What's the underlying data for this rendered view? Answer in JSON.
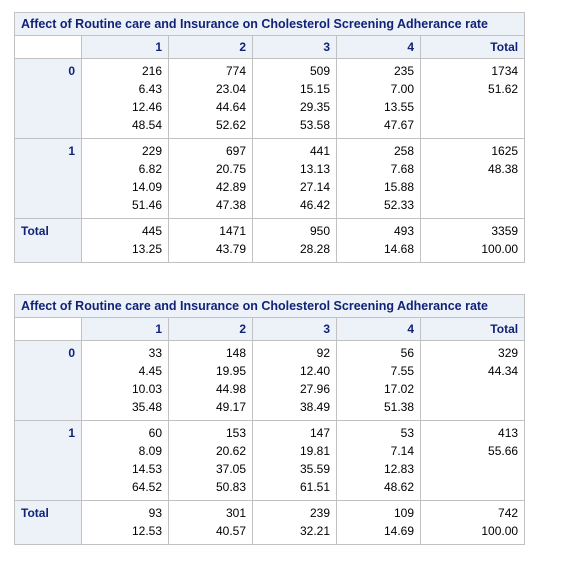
{
  "tables": [
    {
      "title": "Affect of Routine care and Insurance on Cholesterol Screening Adherance rate",
      "columns": [
        "1",
        "2",
        "3",
        "4",
        "Total"
      ],
      "rows": [
        {
          "label": "0",
          "cells": [
            [
              "216",
              "6.43",
              "12.46",
              "48.54"
            ],
            [
              "774",
              "23.04",
              "44.64",
              "52.62"
            ],
            [
              "509",
              "15.15",
              "29.35",
              "53.58"
            ],
            [
              "235",
              "7.00",
              "13.55",
              "47.67"
            ],
            [
              "1734",
              "51.62"
            ]
          ]
        },
        {
          "label": "1",
          "cells": [
            [
              "229",
              "6.82",
              "14.09",
              "51.46"
            ],
            [
              "697",
              "20.75",
              "42.89",
              "47.38"
            ],
            [
              "441",
              "13.13",
              "27.14",
              "46.42"
            ],
            [
              "258",
              "7.68",
              "15.88",
              "52.33"
            ],
            [
              "1625",
              "48.38"
            ]
          ]
        },
        {
          "label": "Total",
          "cells": [
            [
              "445",
              "13.25"
            ],
            [
              "1471",
              "43.79"
            ],
            [
              "950",
              "28.28"
            ],
            [
              "493",
              "14.68"
            ],
            [
              "3359",
              "100.00"
            ]
          ]
        }
      ]
    },
    {
      "title": "Affect of Routine care and Insurance on Cholesterol Screening Adherance rate",
      "columns": [
        "1",
        "2",
        "3",
        "4",
        "Total"
      ],
      "rows": [
        {
          "label": "0",
          "cells": [
            [
              "33",
              "4.45",
              "10.03",
              "35.48"
            ],
            [
              "148",
              "19.95",
              "44.98",
              "49.17"
            ],
            [
              "92",
              "12.40",
              "27.96",
              "38.49"
            ],
            [
              "56",
              "7.55",
              "17.02",
              "51.38"
            ],
            [
              "329",
              "44.34"
            ]
          ]
        },
        {
          "label": "1",
          "cells": [
            [
              "60",
              "8.09",
              "14.53",
              "64.52"
            ],
            [
              "153",
              "20.62",
              "37.05",
              "50.83"
            ],
            [
              "147",
              "19.81",
              "35.59",
              "61.51"
            ],
            [
              "53",
              "7.14",
              "12.83",
              "48.62"
            ],
            [
              "413",
              "55.66"
            ]
          ]
        },
        {
          "label": "Total",
          "cells": [
            [
              "93",
              "12.53"
            ],
            [
              "301",
              "40.57"
            ],
            [
              "239",
              "32.21"
            ],
            [
              "109",
              "14.69"
            ],
            [
              "742",
              "100.00"
            ]
          ]
        }
      ]
    }
  ]
}
